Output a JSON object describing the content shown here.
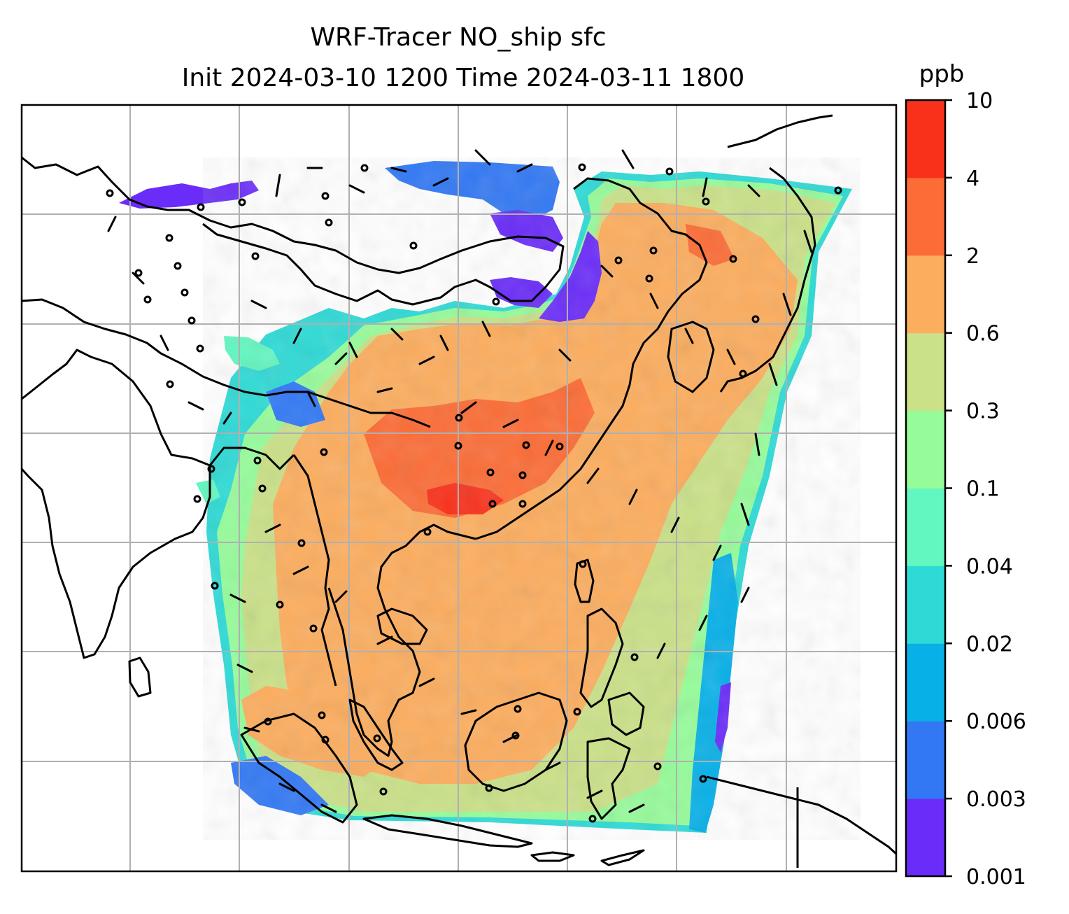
{
  "title": {
    "line1": "WRF-Tracer NO_ship sfc",
    "line2": "Init 2024-03-10 1200 Time 2024-03-11 1800"
  },
  "colorbar": {
    "unit": "ppb",
    "levels": [
      "0.001",
      "0.003",
      "0.006",
      "0.02",
      "0.04",
      "0.1",
      "0.3",
      "0.6",
      "2",
      "4",
      "10"
    ],
    "colors": [
      "#6a2cf8",
      "#3278f4",
      "#08b0e8",
      "#2edad6",
      "#62f6c0",
      "#96fc9a",
      "#cae188",
      "#fcad5e",
      "#fc6c36",
      "#f9311b"
    ]
  },
  "colors": {
    "coastline": "#000000",
    "gridline": "#b0b0b0",
    "barb": "#000000"
  }
}
